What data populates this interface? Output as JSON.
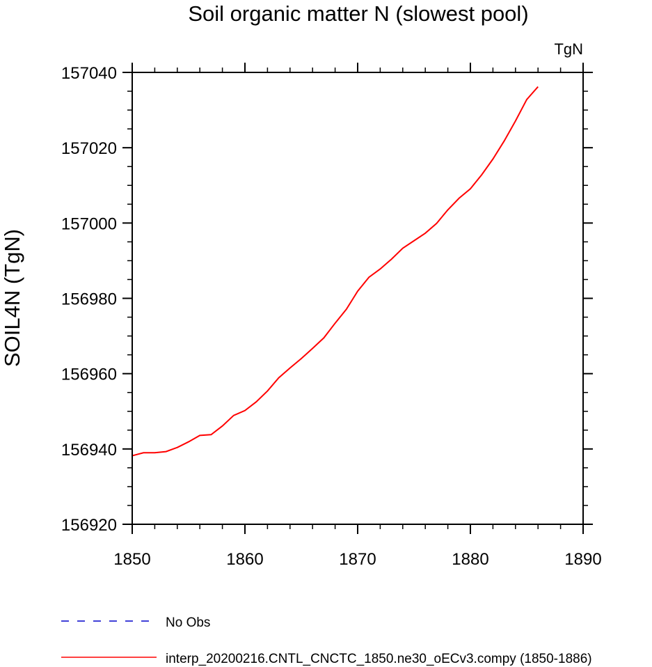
{
  "chart_data": {
    "type": "line",
    "title": "Soil organic matter N (slowest pool)",
    "units_label": "TgN",
    "ylabel": "SOIL4N  (TgN)",
    "xlabel": "",
    "xlim": [
      1850,
      1890
    ],
    "ylim": [
      156920,
      157040
    ],
    "x_ticks": [
      "1850",
      "1860",
      "1870",
      "1880",
      "1890"
    ],
    "y_ticks": [
      "156920",
      "156940",
      "156960",
      "156980",
      "157000",
      "157020",
      "157040"
    ],
    "grid": false,
    "legend_position": "bottom",
    "series": [
      {
        "name": "No Obs",
        "color": "#0000cc",
        "dash": "dashed",
        "x": [],
        "y": []
      },
      {
        "name": "interp_20200216.CNTL_CNCTC_1850.ne30_oECv3.compy (1850-1886)",
        "color": "#ff0000",
        "dash": "solid",
        "x": [
          1850,
          1851,
          1852,
          1853,
          1854,
          1855,
          1856,
          1857,
          1858,
          1859,
          1860,
          1861,
          1862,
          1863,
          1864,
          1865,
          1866,
          1867,
          1868,
          1869,
          1870,
          1871,
          1872,
          1873,
          1874,
          1875,
          1876,
          1877,
          1878,
          1879,
          1880,
          1881,
          1882,
          1883,
          1884,
          1885,
          1886
        ],
        "y": [
          156938.2,
          156939.0,
          156939.0,
          156939.3,
          156940.4,
          156941.9,
          156943.6,
          156943.8,
          156946.1,
          156948.9,
          156950.2,
          156952.5,
          156955.4,
          156958.9,
          156961.5,
          156964.0,
          156966.7,
          156969.5,
          156973.4,
          156977.1,
          156981.9,
          156985.6,
          156987.8,
          156990.4,
          156993.3,
          156995.3,
          156997.3,
          156999.9,
          157003.5,
          157006.6,
          157009.1,
          157012.8,
          157017.0,
          157021.8,
          157027.1,
          157032.8,
          157036.2
        ]
      }
    ]
  }
}
